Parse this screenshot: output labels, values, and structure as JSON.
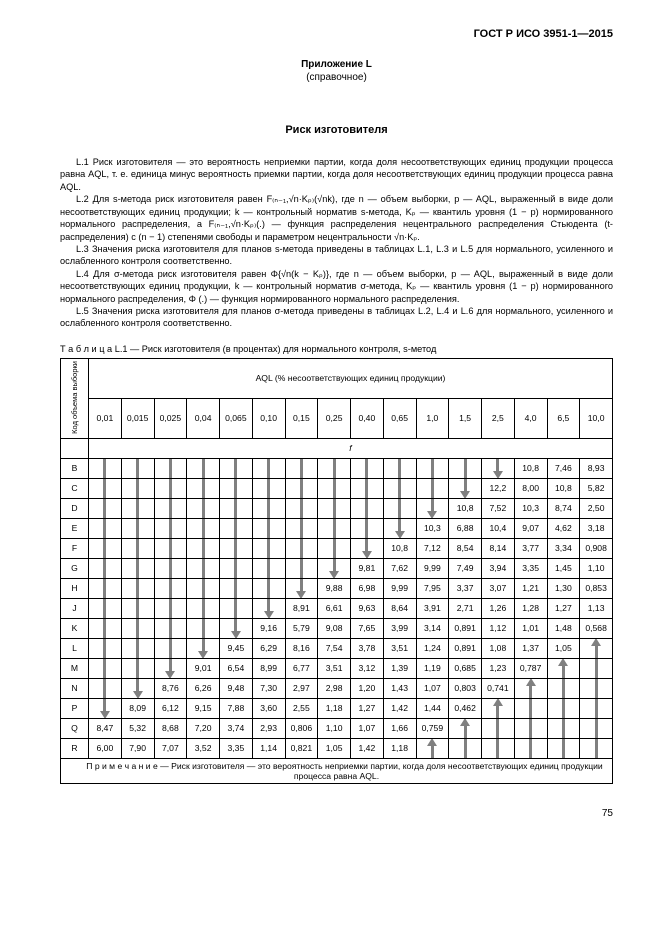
{
  "doc_header": "ГОСТ Р ИСО 3951-1—2015",
  "appendix_title": "Приложение L",
  "appendix_sub": "(справочное)",
  "section_title": "Риск изготовителя",
  "paragraphs": [
    "L.1 Риск изготовителя — это вероятность неприемки партии, когда доля несоответствующих единиц продукции процесса равна AQL, т. е. единица минус вероятность приемки партии, когда доля несоответствующих единиц продукции процесса равна AQL.",
    "L.2 Для s-метода риск изготовителя равен F₍ₙ₋₁,√n·Kₚ₎(√nk), где n — объем выборки, p — AQL, выраженный в виде доли несоответствующих единиц продукции; k — контрольный норматив s-метода, Kₚ — квантиль уровня (1 − p) нормированного нормального распределения, а F₍ₙ₋₁,√n·Kₚ₎(.) — функция распределения нецентрального распределения Стьюдента (t-распределения) с (n − 1) степенями свободы и параметром нецентральности √n·Kₚ.",
    "L.3 Значения риска изготовителя для планов s-метода приведены в таблицах L.1, L.3 и L.5 для нормального, усиленного и ослабленного контроля соответственно.",
    "L.4 Для σ-метода риск изготовителя равен Φ{√n(k − Kₚ)}, где n — объем выборки, p — AQL, выраженный в виде доли несоответствующих единиц продукции, k — контрольный норматив σ-метода, Kₚ — квантиль уровня (1 − p) нормированного нормального распределения, Φ (.) — функция нормированного нормального распределения.",
    "L.5 Значения риска изготовителя для планов σ-метода приведены в таблицах L.2, L.4 и L.6 для нормального, усиленного и ослабленного контроля соответственно."
  ],
  "table_caption": "Т а б л и ц а  L.1 — Риск изготовителя (в процентах) для нормального контроля, s-метод",
  "table": {
    "corner_label": "Код объема выборки",
    "aql_header": "AQL (% несоответствующих единиц продукции)",
    "body_sym": "f",
    "aql_cols": [
      "0,01",
      "0,015",
      "0,025",
      "0,04",
      "0,065",
      "0,10",
      "0,15",
      "0,25",
      "0,40",
      "0,65",
      "1,0",
      "1,5",
      "2,5",
      "4,0",
      "6,5",
      "10,0"
    ],
    "row_labels": [
      "B",
      "C",
      "D",
      "E",
      "F",
      "G",
      "H",
      "J",
      "K",
      "L",
      "M",
      "N",
      "P",
      "Q",
      "R"
    ],
    "cells": [
      [
        "d",
        "d",
        "d",
        "d",
        "d",
        "d",
        "d",
        "d",
        "d",
        "d",
        "d",
        "d",
        "hd",
        "10,8",
        "7,46",
        "8,93"
      ],
      [
        "s",
        "s",
        "s",
        "s",
        "s",
        "s",
        "s",
        "s",
        "s",
        "s",
        "s",
        "hd",
        "12,2",
        "8,00",
        "10,8",
        "5,82"
      ],
      [
        "s",
        "s",
        "s",
        "s",
        "s",
        "s",
        "s",
        "s",
        "s",
        "s",
        "hd",
        "10,8",
        "7,52",
        "10,3",
        "8,74",
        "2,50"
      ],
      [
        "s",
        "s",
        "s",
        "s",
        "s",
        "s",
        "s",
        "s",
        "s",
        "hd",
        "10,3",
        "6,88",
        "10,4",
        "9,07",
        "4,62",
        "3,18"
      ],
      [
        "s",
        "s",
        "s",
        "s",
        "s",
        "s",
        "s",
        "s",
        "hd",
        "10,8",
        "7,12",
        "8,54",
        "8,14",
        "3,77",
        "3,34",
        "0,908"
      ],
      [
        "s",
        "s",
        "s",
        "s",
        "s",
        "s",
        "s",
        "hd",
        "9,81",
        "7,62",
        "9,99",
        "7,49",
        "3,94",
        "3,35",
        "1,45",
        "1,10"
      ],
      [
        "s",
        "s",
        "s",
        "s",
        "s",
        "s",
        "hd",
        "9,88",
        "6,98",
        "9,99",
        "7,95",
        "3,37",
        "3,07",
        "1,21",
        "1,30",
        "0,853"
      ],
      [
        "s",
        "s",
        "s",
        "s",
        "s",
        "hd",
        "8,91",
        "6,61",
        "9,63",
        "8,64",
        "3,91",
        "2,71",
        "1,26",
        "1,28",
        "1,27",
        "1,13"
      ],
      [
        "s",
        "s",
        "s",
        "s",
        "hd",
        "9,16",
        "5,79",
        "9,08",
        "7,65",
        "3,99",
        "3,14",
        "0,891",
        "1,12",
        "1,01",
        "1,48",
        "0,568"
      ],
      [
        "s",
        "s",
        "s",
        "hd",
        "9,45",
        "6,29",
        "8,16",
        "7,54",
        "3,78",
        "3,51",
        "1,24",
        "0,891",
        "1,08",
        "1,37",
        "1,05",
        "hu"
      ],
      [
        "s",
        "s",
        "hd",
        "9,01",
        "6,54",
        "8,99",
        "6,77",
        "3,51",
        "3,12",
        "1,39",
        "1,19",
        "0,685",
        "1,23",
        "0,787",
        "hu",
        "s"
      ],
      [
        "s",
        "hd",
        "8,76",
        "6,26",
        "9,48",
        "7,30",
        "2,97",
        "2,98",
        "1,20",
        "1,43",
        "1,07",
        "0,803",
        "0,741",
        "hu",
        "s",
        "s"
      ],
      [
        "hd",
        "8,09",
        "6,12",
        "9,15",
        "7,88",
        "3,60",
        "2,55",
        "1,18",
        "1,27",
        "1,42",
        "1,44",
        "0,462",
        "hu",
        "s",
        "s",
        "s"
      ],
      [
        "8,47",
        "5,32",
        "8,68",
        "7,20",
        "3,74",
        "2,93",
        "0,806",
        "1,10",
        "1,07",
        "1,66",
        "0,759",
        "hu",
        "s",
        "s",
        "s",
        "u"
      ],
      [
        "6,00",
        "7,90",
        "7,07",
        "3,52",
        "3,35",
        "1,14",
        "0,821",
        "1,05",
        "1,42",
        "1,18",
        "hu",
        "s",
        "s",
        "s",
        "u",
        "u"
      ]
    ],
    "note": "П р и м е ч а н и е  —  Риск изготовителя — это вероятность неприемки партии, когда доля несоответствующих единиц продукции процесса равна AQL."
  },
  "page_number": "75",
  "colors": {
    "arrow": "#808080",
    "text": "#000000",
    "bg": "#ffffff",
    "border": "#000000"
  }
}
